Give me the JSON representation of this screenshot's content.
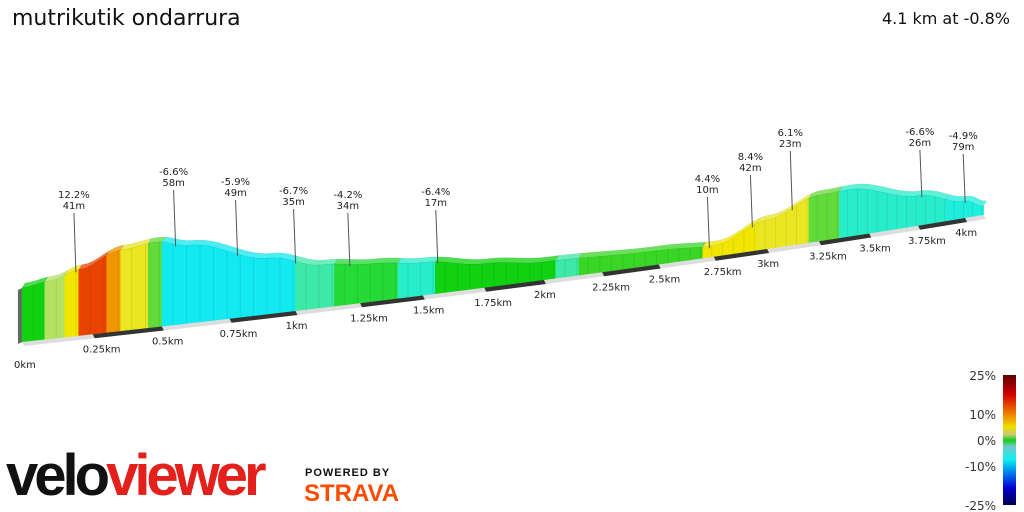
{
  "header": {
    "title": "mutrikutik ondarrura",
    "summary": "4.1 km at -0.8%"
  },
  "branding": {
    "logo_velo": "velo",
    "logo_viewer": "viewer",
    "powered_by": "POWERED BY",
    "strava": "STRAVA",
    "strava_color": "#fc4c02",
    "viewer_color": "#e3201b"
  },
  "chart_data": {
    "type": "area",
    "title": "",
    "x_unit": "km",
    "xlim": [
      0,
      4.1
    ],
    "x_ticks": [
      "0km",
      "0.25km",
      "0.5km",
      "0.75km",
      "1km",
      "1.25km",
      "1.5km",
      "1.75km",
      "2km",
      "2.25km",
      "2.5km",
      "2.75km",
      "3km",
      "3.25km",
      "3.5km",
      "3.75km",
      "4km"
    ],
    "profile": {
      "distance_km": [
        0,
        0.1,
        0.2,
        0.35,
        0.48,
        0.6,
        0.9,
        1.1,
        1.3,
        1.5,
        1.75,
        2.0,
        2.5,
        2.75,
        3.0,
        3.25,
        3.4,
        3.75,
        4.0,
        4.1
      ],
      "relative_height": [
        54,
        58,
        66,
        81,
        85,
        78,
        56,
        43,
        38,
        33,
        24,
        18,
        14,
        11,
        29,
        46,
        47,
        30,
        17,
        9
      ]
    },
    "gradient_segments": [
      {
        "from": 0,
        "to": 0.08,
        "grade": 0
      },
      {
        "from": 0.08,
        "to": 0.15,
        "grade": 2
      },
      {
        "from": 0.15,
        "to": 0.2,
        "grade": 6
      },
      {
        "from": 0.2,
        "to": 0.3,
        "grade": 12.2
      },
      {
        "from": 0.3,
        "to": 0.35,
        "grade": 9
      },
      {
        "from": 0.35,
        "to": 0.45,
        "grade": 5
      },
      {
        "from": 0.45,
        "to": 0.5,
        "grade": 1
      },
      {
        "from": 0.5,
        "to": 1.0,
        "grade": -6.5
      },
      {
        "from": 1.0,
        "to": 1.15,
        "grade": -4
      },
      {
        "from": 1.15,
        "to": 1.4,
        "grade": -1
      },
      {
        "from": 1.4,
        "to": 1.55,
        "grade": -5
      },
      {
        "from": 1.55,
        "to": 2.05,
        "grade": 0
      },
      {
        "from": 2.05,
        "to": 2.15,
        "grade": -4
      },
      {
        "from": 2.15,
        "to": 2.7,
        "grade": 0.5
      },
      {
        "from": 2.7,
        "to": 2.95,
        "grade": 6
      },
      {
        "from": 2.95,
        "to": 3.2,
        "grade": 5
      },
      {
        "from": 3.2,
        "to": 3.35,
        "grade": 1
      },
      {
        "from": 3.35,
        "to": 3.9,
        "grade": -5
      },
      {
        "from": 3.9,
        "to": 4.1,
        "grade": -5.5
      }
    ],
    "annotations": [
      {
        "km": 0.19,
        "grade": "12.2%",
        "length": "41m"
      },
      {
        "km": 0.55,
        "grade": "-6.6%",
        "length": "58m"
      },
      {
        "km": 0.78,
        "grade": "-5.9%",
        "length": "49m"
      },
      {
        "km": 1.0,
        "grade": "-6.7%",
        "length": "35m"
      },
      {
        "km": 1.21,
        "grade": "-4.2%",
        "length": "34m"
      },
      {
        "km": 1.56,
        "grade": "-6.4%",
        "length": "17m"
      },
      {
        "km": 2.73,
        "grade": "4.4%",
        "length": "10m"
      },
      {
        "km": 2.93,
        "grade": "8.4%",
        "length": "42m"
      },
      {
        "km": 3.12,
        "grade": "6.1%",
        "length": "23m"
      },
      {
        "km": 3.77,
        "grade": "-6.6%",
        "length": "26m"
      },
      {
        "km": 4.0,
        "grade": "-4.9%",
        "length": "79m"
      }
    ],
    "legend": {
      "ticks": [
        "25%",
        "10%",
        "0%",
        "-10%",
        "-25%"
      ],
      "range": [
        -25,
        25
      ]
    }
  }
}
